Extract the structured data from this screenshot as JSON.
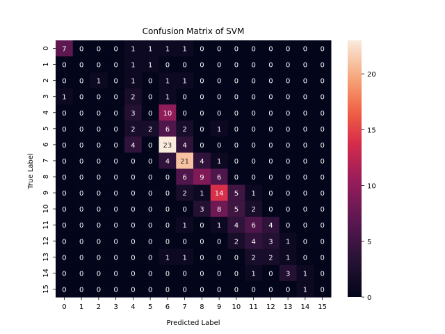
{
  "chart_data": {
    "type": "heatmap",
    "title": "Confusion Matrix of SVM",
    "xlabel": "Predicted Label",
    "ylabel": "True Label",
    "x_categories": [
      "0",
      "1",
      "2",
      "3",
      "4",
      "5",
      "6",
      "7",
      "8",
      "9",
      "10",
      "11",
      "12",
      "13",
      "14",
      "15"
    ],
    "y_categories": [
      "0",
      "1",
      "2",
      "3",
      "4",
      "5",
      "6",
      "7",
      "8",
      "9",
      "10",
      "11",
      "12",
      "13",
      "14",
      "15"
    ],
    "values": [
      [
        7,
        0,
        0,
        0,
        1,
        1,
        1,
        1,
        0,
        0,
        0,
        0,
        0,
        0,
        0,
        0
      ],
      [
        0,
        0,
        0,
        0,
        1,
        1,
        0,
        0,
        0,
        0,
        0,
        0,
        0,
        0,
        0,
        0
      ],
      [
        0,
        0,
        1,
        0,
        1,
        0,
        1,
        1,
        0,
        0,
        0,
        0,
        0,
        0,
        0,
        0
      ],
      [
        1,
        0,
        0,
        0,
        2,
        0,
        1,
        0,
        0,
        0,
        0,
        0,
        0,
        0,
        0,
        0
      ],
      [
        0,
        0,
        0,
        0,
        3,
        0,
        10,
        0,
        0,
        0,
        0,
        0,
        0,
        0,
        0,
        0
      ],
      [
        0,
        0,
        0,
        0,
        2,
        2,
        6,
        2,
        0,
        1,
        0,
        0,
        0,
        0,
        0,
        0
      ],
      [
        0,
        0,
        0,
        0,
        4,
        0,
        23,
        4,
        0,
        0,
        0,
        0,
        0,
        0,
        0,
        0
      ],
      [
        0,
        0,
        0,
        0,
        0,
        0,
        4,
        21,
        4,
        1,
        0,
        0,
        0,
        0,
        0,
        0
      ],
      [
        0,
        0,
        0,
        0,
        0,
        0,
        0,
        6,
        9,
        6,
        0,
        0,
        0,
        0,
        0,
        0
      ],
      [
        0,
        0,
        0,
        0,
        0,
        0,
        0,
        2,
        1,
        14,
        5,
        1,
        0,
        0,
        0,
        0
      ],
      [
        0,
        0,
        0,
        0,
        0,
        0,
        0,
        0,
        3,
        8,
        5,
        2,
        0,
        0,
        0,
        0
      ],
      [
        0,
        0,
        0,
        0,
        0,
        0,
        0,
        1,
        0,
        1,
        4,
        6,
        4,
        0,
        0,
        0
      ],
      [
        0,
        0,
        0,
        0,
        0,
        0,
        0,
        0,
        0,
        0,
        2,
        4,
        3,
        1,
        0,
        0
      ],
      [
        0,
        0,
        0,
        0,
        0,
        0,
        1,
        1,
        0,
        0,
        0,
        2,
        2,
        1,
        0,
        0
      ],
      [
        0,
        0,
        0,
        0,
        0,
        0,
        0,
        0,
        0,
        0,
        0,
        1,
        0,
        3,
        1,
        0
      ],
      [
        0,
        0,
        0,
        0,
        0,
        0,
        0,
        0,
        0,
        0,
        0,
        0,
        0,
        0,
        1,
        0
      ]
    ],
    "vmin": 0,
    "vmax": 23,
    "colorbar_ticks": [
      0,
      5,
      10,
      15,
      20
    ],
    "colormap": "rocket",
    "annotated": true
  }
}
